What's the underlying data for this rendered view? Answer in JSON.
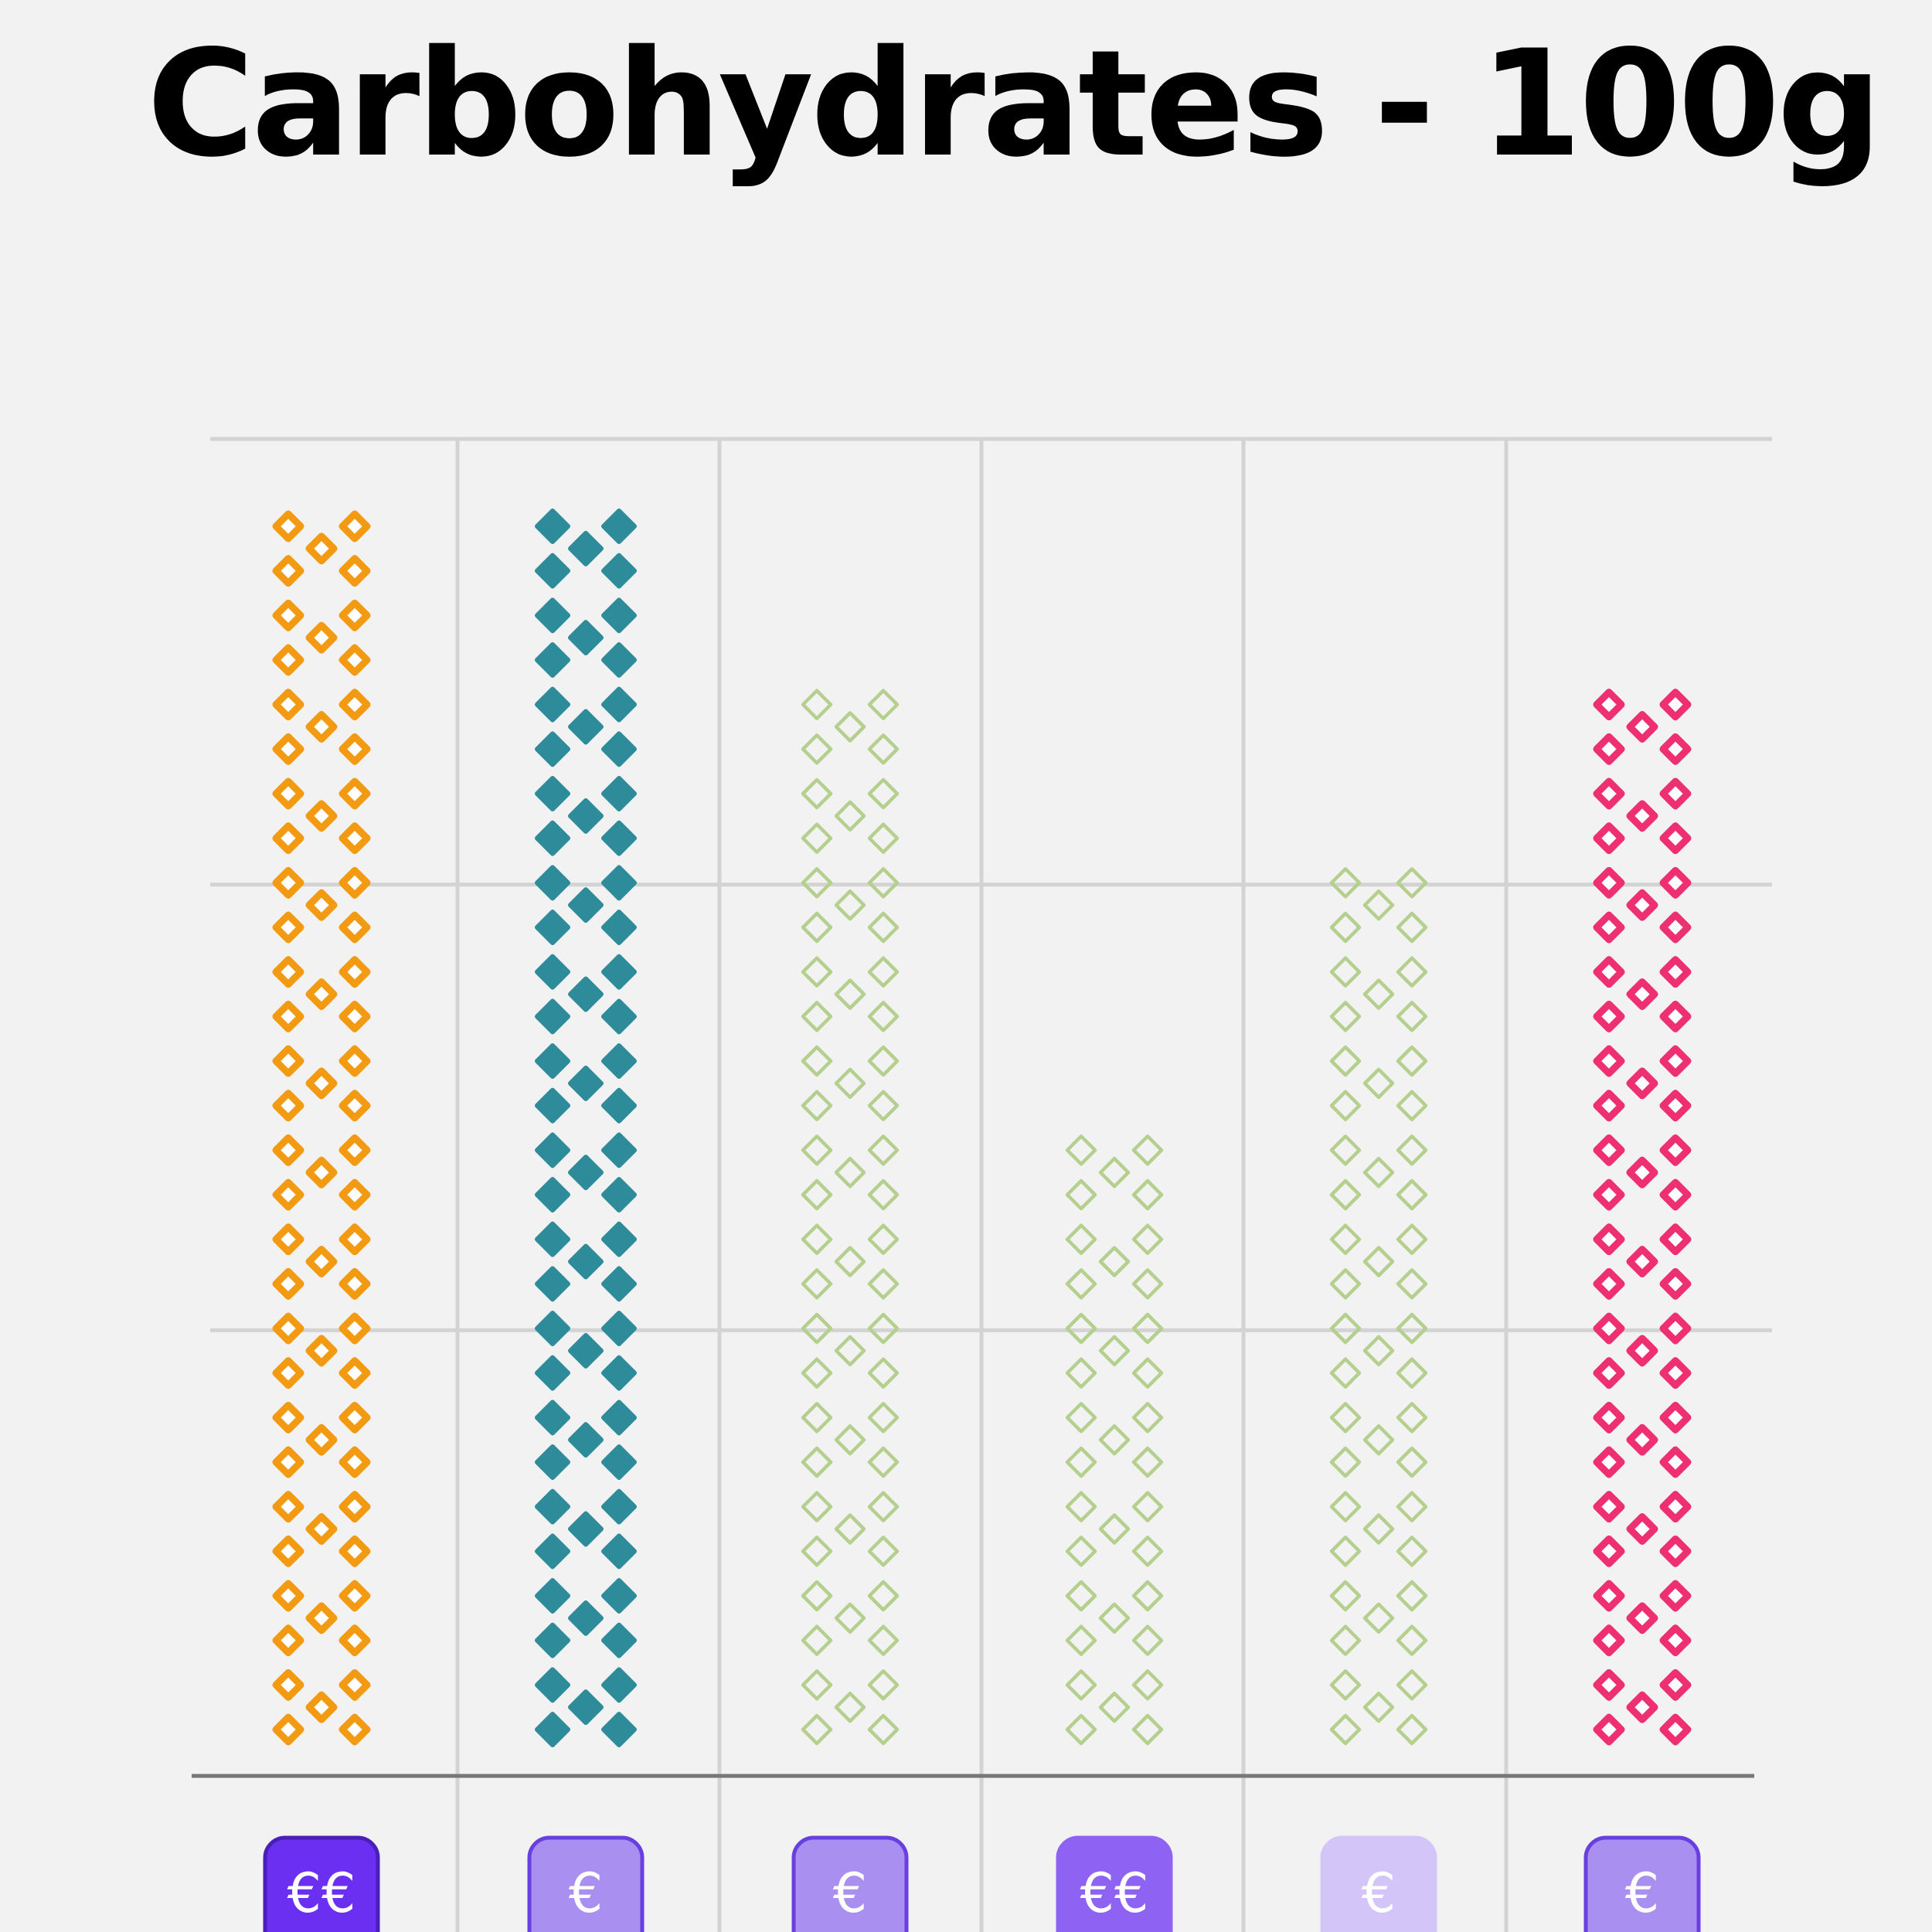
{
  "chart_data": {
    "type": "bar",
    "title": "Carbohydrates - 100g",
    "xlabel": "",
    "ylabel": "",
    "ylim": [
      0,
      30
    ],
    "grid": true,
    "categories": [
      "€€",
      "€",
      "€",
      "€€",
      "€",
      "€"
    ],
    "values": [
      28,
      28,
      24,
      14,
      20,
      24
    ],
    "bars": [
      {
        "color": "#f29a12",
        "marker": "outlined-diamond",
        "badge": "€€",
        "badge_fill": "#6a2ff0",
        "badge_border": "#4a1fb8",
        "badge_text": "#ffffff"
      },
      {
        "color": "#2e8b9a",
        "marker": "filled-diamond",
        "badge": "€",
        "badge_fill": "#a88ff0",
        "badge_border": "#6a3fe0",
        "badge_text": "#ffffff"
      },
      {
        "color": "#b5cf8e",
        "marker": "hollow-diamond",
        "badge": "€",
        "badge_fill": "#a88ff0",
        "badge_border": "#6a3fe0",
        "badge_text": "#ffffff"
      },
      {
        "color": "#b5cf8e",
        "marker": "hollow-diamond",
        "badge": "€€",
        "badge_fill": "#8e62f2",
        "badge_border": "#8e62f2",
        "badge_text": "#ffffff"
      },
      {
        "color": "#b5cf8e",
        "marker": "hollow-diamond",
        "badge": "€",
        "badge_fill": "#d3c5f7",
        "badge_border": "#d3c5f7",
        "badge_text": "#ffffff"
      },
      {
        "color": "#ee2f72",
        "marker": "outlined-diamond",
        "badge": "€",
        "badge_fill": "#a88ff0",
        "badge_border": "#6a3fe0",
        "badge_text": "#ffffff"
      }
    ]
  }
}
